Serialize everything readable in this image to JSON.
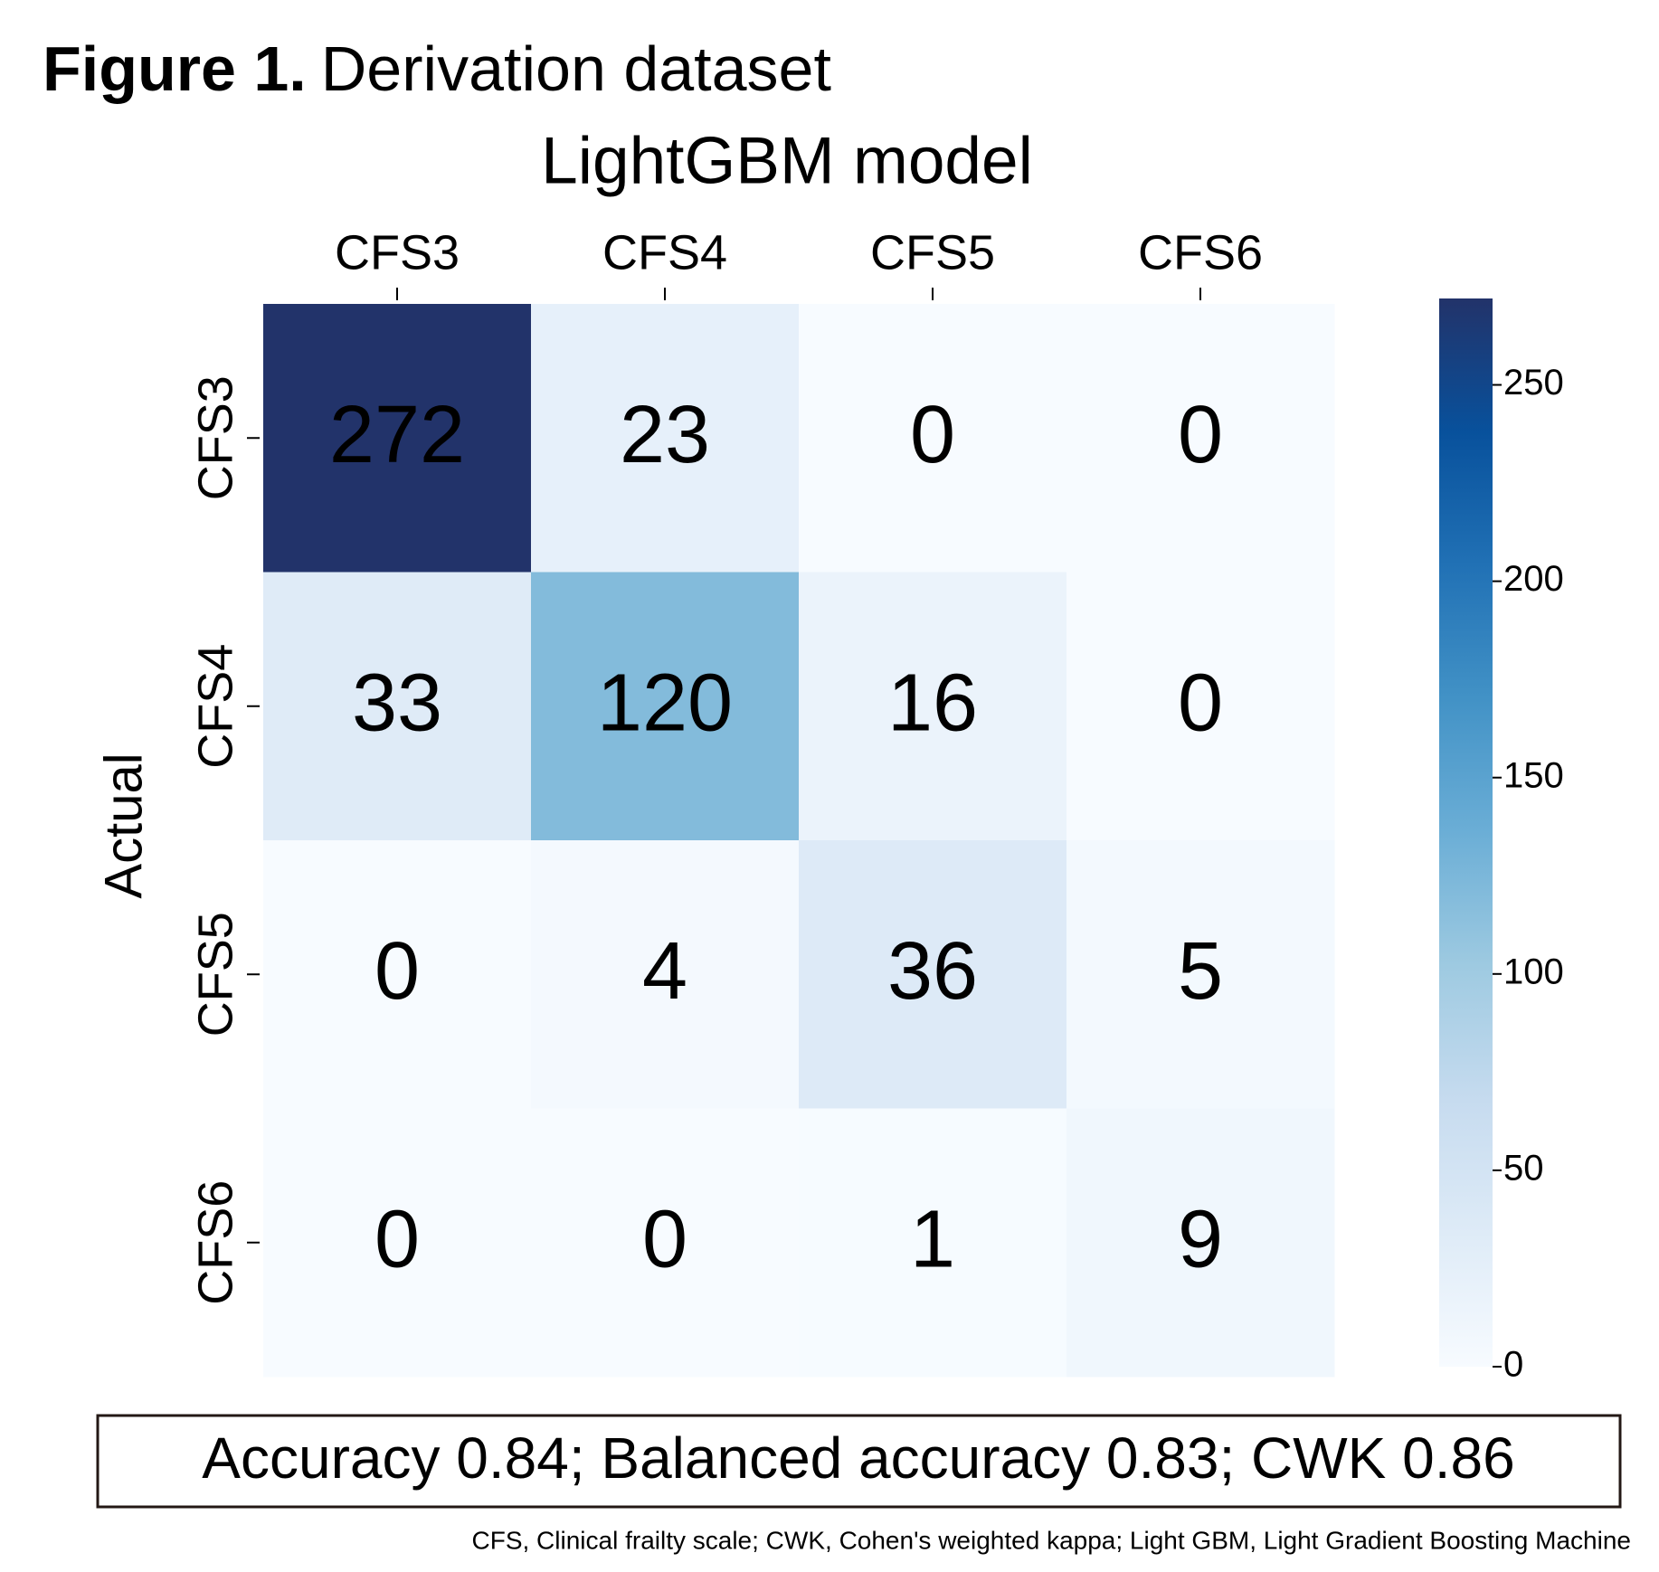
{
  "figure": {
    "label": "Figure 1.",
    "title": "Derivation dataset",
    "metrics": "Accuracy 0.84; Balanced accuracy 0.83; CWK 0.86",
    "footnote": "CFS, Clinical frailty scale; CWK, Cohen's weighted kappa; Light GBM, Light Gradient Boosting Machine"
  },
  "chart_data": {
    "type": "heatmap",
    "title": "LightGBM model",
    "x_categories": [
      "CFS3",
      "CFS4",
      "CFS5",
      "CFS6"
    ],
    "y_categories": [
      "CFS3",
      "CFS4",
      "CFS5",
      "CFS6"
    ],
    "y_label": "Actual",
    "values": [
      [
        272,
        23,
        0,
        0
      ],
      [
        33,
        120,
        16,
        0
      ],
      [
        0,
        4,
        36,
        5
      ],
      [
        0,
        0,
        1,
        9
      ]
    ],
    "colormap": [
      "#f7fbff",
      "#deebf7",
      "#c6dbef",
      "#9ecae1",
      "#6baed6",
      "#4292c6",
      "#2171b5",
      "#08519c",
      "#22336a"
    ],
    "clim": [
      0,
      272
    ],
    "cticks": [
      0,
      50,
      100,
      150,
      200,
      250
    ]
  }
}
